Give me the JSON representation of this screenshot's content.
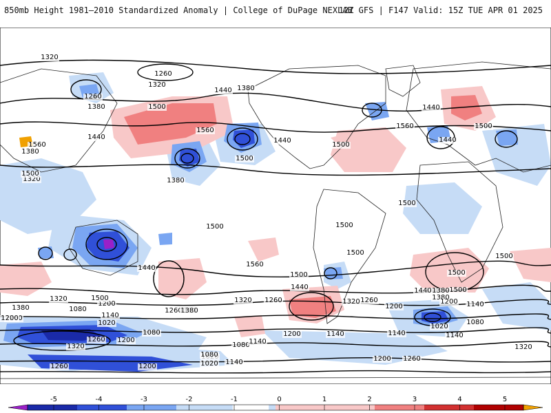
{
  "header": {
    "title": "850mb Height 1981–2010 Standardized Anomaly | College of DuPage NEXLAB",
    "run_info": "12Z GFS | F147 Valid: 15Z TUE APR 01 2025"
  },
  "colors": {
    "pos1": "#f8c8c8",
    "pos2": "#f08080",
    "pos3": "#d23030",
    "pos4": "#b00000",
    "pos5": "#f0a000",
    "neg1": "#c6dcf6",
    "neg2": "#7aa6f2",
    "neg3": "#3050d8",
    "neg4": "#1a2aa8",
    "neg5": "#9a20c8",
    "contour": "#000000",
    "coast": "#222222"
  },
  "legend": {
    "ticks": [
      "-5",
      "-4",
      "-3",
      "-2",
      "-1",
      "0",
      "1",
      "2",
      "3",
      "4",
      "5"
    ]
  },
  "contour_labels": [
    "1320",
    "1260",
    "1320",
    "1260",
    "1380",
    "1500",
    "1440",
    "1380",
    "1560",
    "1500",
    "1440",
    "1380",
    "1320",
    "1380",
    "1560",
    "1500",
    "1440",
    "1500",
    "1560",
    "1440",
    "1500",
    "1500",
    "1440",
    "1500",
    "1500",
    "1500",
    "1440",
    "1560",
    "1500",
    "1440",
    "1500",
    "1500",
    "1380",
    "1320",
    "1260",
    "1200",
    "1080",
    "1020",
    "1140",
    "1260",
    "1200",
    "1080",
    "1320",
    "1260",
    "1200",
    "1380",
    "1320",
    "1260",
    "1200",
    "1140",
    "1080",
    "1020",
    "1140",
    "1200",
    "1260",
    "1440",
    "1380",
    "1500",
    "1440",
    "1380",
    "1200",
    "1140",
    "1080",
    "1020",
    "1140",
    "1320",
    "1260",
    "1200",
    "1500",
    "1380",
    "1320",
    "1260",
    "1200",
    "1140",
    "1080",
    "1020",
    "1140"
  ]
}
